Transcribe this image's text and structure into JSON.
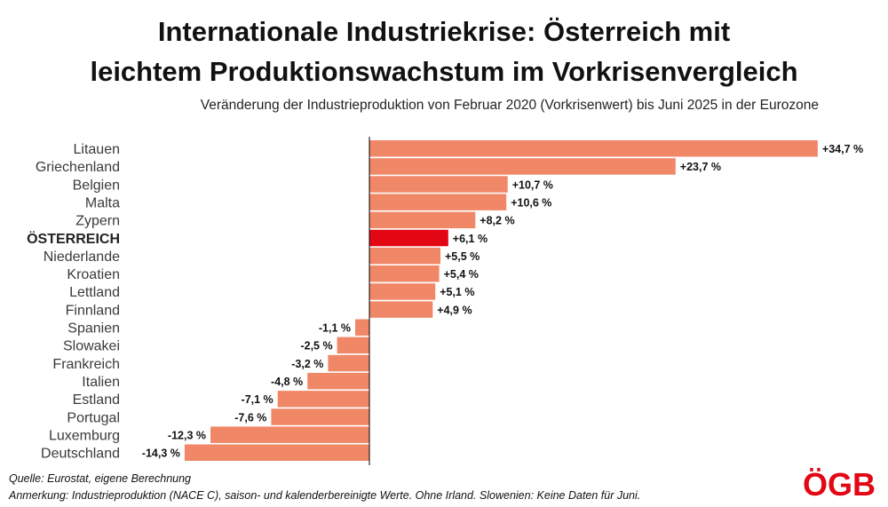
{
  "header": {
    "title_line_1": "Internationale Industriekrise: Österreich mit",
    "title_line_2": "leichtem Produktionswachstum im Vorkrisenvergleich",
    "subtitle": "Veränderung der Industrieproduktion von Februar 2020 (Vorkrisenwert) bis Juni 2025 in der Eurozone"
  },
  "footer": {
    "source": "Quelle: Eurostat, eigene Berechnung",
    "annotation": "Anmerkung: Industrieproduktion (NACE C), saison- und kalenderbereinigte Werte. Ohne Irland. Slowenien: Keine Daten für Juni."
  },
  "logo": {
    "text": "ÖGB",
    "color": "#e30613"
  },
  "chart_data": {
    "type": "bar",
    "orientation": "horizontal",
    "categories": [
      "Litauen",
      "Griechenland",
      "Belgien",
      "Malta",
      "Zypern",
      "ÖSTERREICH",
      "Niederlande",
      "Kroatien",
      "Lettland",
      "Finnland",
      "Spanien",
      "Slowakei",
      "Frankreich",
      "Italien",
      "Estland",
      "Portugal",
      "Luxemburg",
      "Deutschland"
    ],
    "values": [
      34.7,
      23.7,
      10.7,
      10.6,
      8.2,
      6.1,
      5.5,
      5.4,
      5.1,
      4.9,
      -1.1,
      -2.5,
      -3.2,
      -4.8,
      -7.1,
      -7.6,
      -12.3,
      -14.3
    ],
    "value_labels": [
      "+34,7 %",
      "+23,7 %",
      "+10,7 %",
      "+10,6 %",
      "+8,2 %",
      "+6,1 %",
      "+5,5 %",
      "+5,4 %",
      "+5,1 %",
      "+4,9 %",
      "-1,1 %",
      "-2,5 %",
      "-3,2 %",
      "-4,8 %",
      "-7,1 %",
      "-7,6 %",
      "-12,3 %",
      "-14,3 %"
    ],
    "highlight_category": "ÖSTERREICH",
    "colors": {
      "bar": "#f08868",
      "highlight": "#e30613",
      "axis": "#000000"
    },
    "xlim": [
      -14.3,
      34.7
    ],
    "grid": false,
    "legend": "none"
  }
}
